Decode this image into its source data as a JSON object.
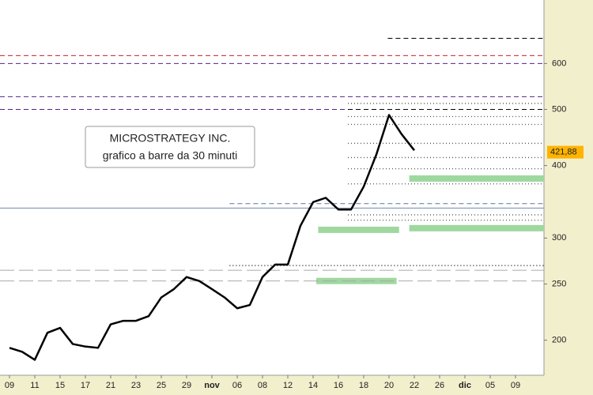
{
  "chart_data": {
    "type": "line",
    "title": "MICROSTRATEGY INC.",
    "subtitle": "grafico a barre da 30 minuti",
    "log_scale": true,
    "categories": [
      "09",
      null,
      "11",
      null,
      "15",
      null,
      "17",
      null,
      "21",
      null,
      "23",
      null,
      "25",
      null,
      "29",
      null,
      "nov",
      null,
      "06",
      null,
      "08",
      null,
      "12",
      null,
      "14",
      null,
      "16",
      null,
      "18",
      null,
      "20",
      null,
      "22",
      null,
      "26",
      null,
      "dic",
      null,
      "05",
      null,
      "09"
    ],
    "series": [
      {
        "color": "#000000",
        "values": [
          194,
          191,
          185,
          206,
          210,
          197,
          195,
          194,
          213,
          216,
          216,
          220,
          237,
          245,
          257,
          253,
          245,
          237,
          227,
          230,
          257,
          270,
          270,
          315,
          346,
          352,
          336,
          336,
          368,
          418,
          489,
          453,
          425,
          null,
          null,
          null,
          null,
          null,
          null,
          null,
          null
        ]
      }
    ],
    "ylim": [
      174,
      772
    ],
    "yticks": [
      200,
      250,
      300,
      400,
      500,
      600
    ],
    "last_price": {
      "value": 421.88,
      "label": "421,88"
    },
    "reference_lines": [
      {
        "value": 663,
        "color": "#000000",
        "style": "dashed",
        "start": 29.9
      },
      {
        "value": 619,
        "color": "#cc2222",
        "style": "dashed",
        "start": -1
      },
      {
        "value": 600,
        "color": "#552288",
        "style": "dashed",
        "start": -1
      },
      {
        "value": 526,
        "color": "#552288",
        "style": "dashed",
        "start": -1
      },
      {
        "value": 500,
        "color": "#552288",
        "style": "dashed",
        "start": -1
      },
      {
        "value": 500,
        "color": "#000000",
        "style": "dashed",
        "start": 26.75
      },
      {
        "value": 512,
        "color": "#555555",
        "style": "dotted",
        "start": 26.75
      },
      {
        "value": 486,
        "color": "#555555",
        "style": "dotted",
        "start": 26.75
      },
      {
        "value": 471,
        "color": "#555555",
        "style": "dotted",
        "start": 26.75
      },
      {
        "value": 437,
        "color": "#555555",
        "style": "dotted",
        "start": 26.75
      },
      {
        "value": 413,
        "color": "#555555",
        "style": "dotted",
        "start": 26.75
      },
      {
        "value": 395,
        "color": "#555555",
        "style": "dotted",
        "start": 26.75
      },
      {
        "value": 372,
        "color": "#555555",
        "style": "dotted",
        "start": 26.75
      },
      {
        "value": 329,
        "color": "#555555",
        "style": "dotted",
        "start": 26.75
      },
      {
        "value": 322,
        "color": "#555555",
        "style": "dotted",
        "start": 26.75
      },
      {
        "value": 344,
        "color": "#5577aa",
        "style": "dashed",
        "start": 17.4
      },
      {
        "value": 338,
        "color": "#7788aa",
        "style": "solid",
        "start": -1
      },
      {
        "value": 269,
        "color": "#000000",
        "style": "dotted",
        "start": 17.4
      },
      {
        "value": 264,
        "color": "#aaaaaa",
        "style": "longdash",
        "start": -1
      },
      {
        "value": 253,
        "color": "#aaaaaa",
        "style": "longdash",
        "start": -1
      }
    ],
    "zones": [
      {
        "value": 380,
        "color": "#9fd89f",
        "start": 31.6,
        "end": 43
      },
      {
        "value": 310,
        "color": "#9fd89f",
        "start": 24.4,
        "end": 30.8
      },
      {
        "value": 312,
        "color": "#9fd89f",
        "start": 31.6,
        "end": 43
      },
      {
        "value": 253,
        "color": "#9fd89f",
        "start": 24.25,
        "end": 30.6
      }
    ]
  }
}
